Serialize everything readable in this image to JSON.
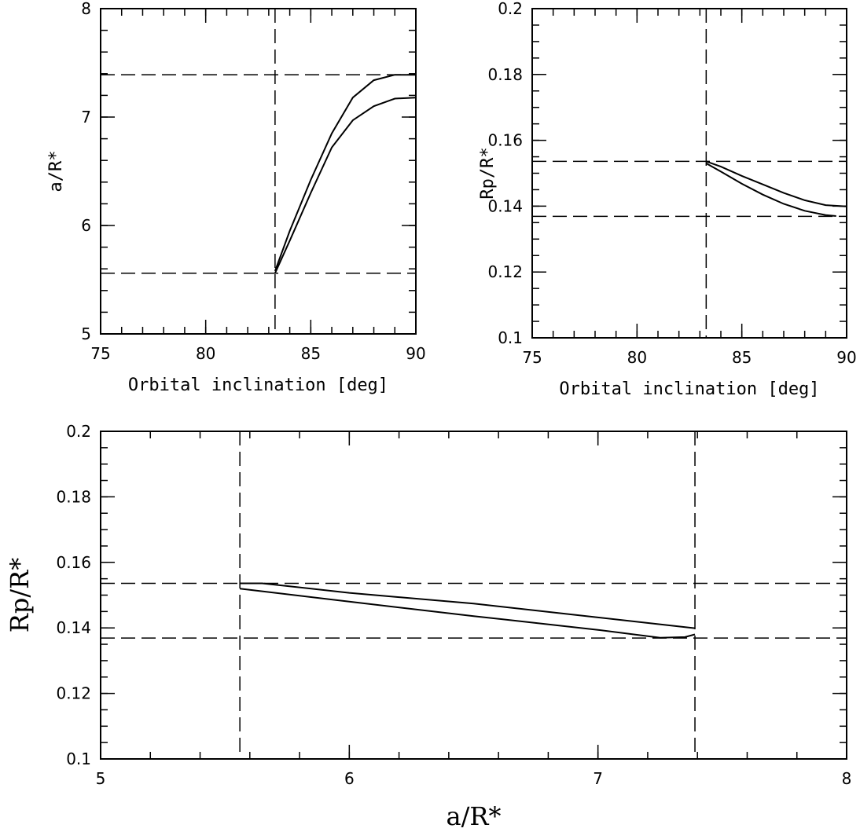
{
  "chart_data": [
    {
      "type": "line",
      "xlabel": "Orbital inclination [deg]",
      "ylabel": "a/R*",
      "xlim": [
        75,
        90
      ],
      "ylim": [
        5,
        8
      ],
      "xticks": [
        "75",
        "80",
        "85",
        "90"
      ],
      "yticks": [
        "5",
        "6",
        "7",
        "8"
      ],
      "ref_x": [
        83.3
      ],
      "ref_y": [
        5.56,
        7.39
      ],
      "series": [
        {
          "x": [
            83.3,
            84.0,
            85.0,
            86.0,
            87.0,
            88.0,
            89.0,
            90.0
          ],
          "y": [
            5.58,
            5.95,
            6.42,
            6.85,
            7.18,
            7.34,
            7.39,
            7.39
          ]
        },
        {
          "x": [
            83.3,
            84.0,
            85.0,
            86.0,
            87.0,
            88.0,
            89.0,
            90.0
          ],
          "y": [
            5.56,
            5.86,
            6.3,
            6.72,
            6.97,
            7.1,
            7.17,
            7.18
          ]
        }
      ]
    },
    {
      "type": "line",
      "xlabel": "Orbital inclination [deg]",
      "ylabel": "Rp/R*",
      "xlim": [
        75,
        90
      ],
      "ylim": [
        0.1,
        0.2
      ],
      "xticks": [
        "75",
        "80",
        "85",
        "90"
      ],
      "yticks": [
        "0.1",
        "0.12",
        "0.14",
        "0.16",
        "0.18",
        "0.2"
      ],
      "ref_x": [
        83.3
      ],
      "ref_y": [
        0.1536,
        0.1369
      ],
      "series": [
        {
          "x": [
            83.3,
            84.0,
            85.0,
            86.0,
            87.0,
            88.0,
            89.0,
            90.0
          ],
          "y": [
            0.1536,
            0.152,
            0.1492,
            0.1466,
            0.144,
            0.1418,
            0.1403,
            0.1399
          ]
        },
        {
          "x": [
            83.3,
            84.0,
            85.0,
            86.0,
            87.0,
            88.0,
            89.0,
            89.5
          ],
          "y": [
            0.153,
            0.1505,
            0.1468,
            0.1435,
            0.1407,
            0.1386,
            0.1373,
            0.137
          ]
        }
      ]
    },
    {
      "type": "line",
      "xlabel": "a/R*",
      "ylabel": "Rp/R*",
      "xlim": [
        5,
        8
      ],
      "ylim": [
        0.1,
        0.2
      ],
      "xticks": [
        "5",
        "6",
        "7",
        "8"
      ],
      "yticks": [
        "0.1",
        "0.12",
        "0.14",
        "0.16",
        "0.18",
        "0.2"
      ],
      "ref_x": [
        5.56,
        7.39
      ],
      "ref_y": [
        0.1536,
        0.1369
      ],
      "series": [
        {
          "x": [
            5.56,
            5.65,
            6.0,
            6.5,
            7.0,
            7.39
          ],
          "y": [
            0.1536,
            0.1536,
            0.1507,
            0.1474,
            0.1432,
            0.1399
          ]
        },
        {
          "x": [
            5.56,
            6.0,
            6.5,
            7.0,
            7.25,
            7.35,
            7.39
          ],
          "y": [
            0.152,
            0.148,
            0.1436,
            0.1394,
            0.137,
            0.1372,
            0.138
          ]
        }
      ]
    }
  ]
}
